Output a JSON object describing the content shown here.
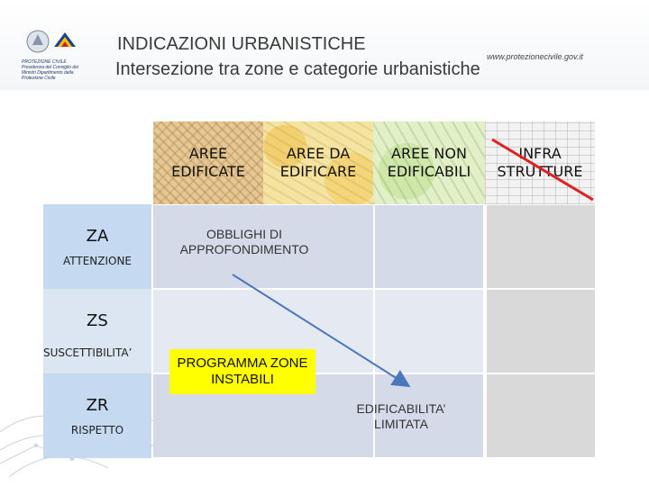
{
  "header": {
    "title": "INDICAZIONI URBANISTICHE",
    "subtitle": "Intersezione tra zone e categorie urbanistiche",
    "url": "www.protezionecivile.gov.it",
    "logo_text": "PROTEZIONE CIVILE Presidenza del Consiglio dei Ministri Dipartimento della Protezione Civile"
  },
  "columns": [
    {
      "label": "AREE EDIFICATE"
    },
    {
      "label": "AREE DA EDIFICARE"
    },
    {
      "label": "AREE NON EDIFICABILI"
    },
    {
      "label": "INFRA STRUTTURE"
    }
  ],
  "rows": [
    {
      "code": "ZA",
      "name": "ATTENZIONE"
    },
    {
      "code": "ZS",
      "name": "SUSCETTIBILITA’"
    },
    {
      "code": "ZR",
      "name": "RISPETTO"
    }
  ],
  "annotations": {
    "obblighi": "OBBLIGHI DI APPROFONDIMENTO",
    "programma": "PROGRAMMA ZONE INSTABILI",
    "edificabilita": "EDIFICABILITA’ LIMITATA"
  },
  "colors": {
    "row_za": "#c5d9f1",
    "row_zs": "#dce6f2",
    "row_zr": "#c5d9f1",
    "grid_light": "#dde3ee",
    "grid_mid": "#d4dae8",
    "infra_grey": "#d9d9d9",
    "arrow": "#4a78b8",
    "strike": "#e02020",
    "highlight": "#ffff00"
  }
}
